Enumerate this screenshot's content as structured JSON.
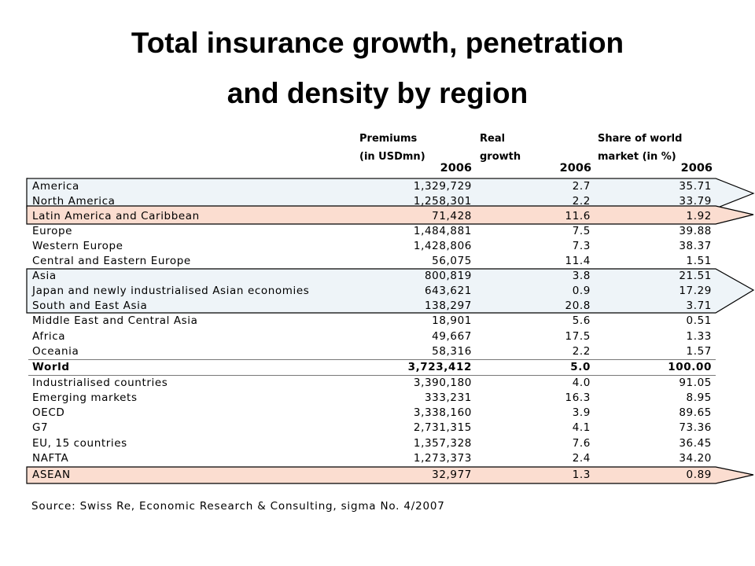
{
  "title": {
    "line1": "Total insurance growth, penetration",
    "line2": "and density by region"
  },
  "table": {
    "headers": {
      "premiums": [
        "Premiums",
        "(in USDmn)"
      ],
      "growth": [
        "Real",
        "growth"
      ],
      "share": [
        "Share of world",
        "market (in %)"
      ]
    },
    "year": "2006",
    "rows": [
      {
        "label": "America",
        "premiums": "1,329,729",
        "growth": "2.7",
        "share": "35.71",
        "highlight": "blue"
      },
      {
        "label": "North America",
        "premiums": "1,258,301",
        "growth": "2.2",
        "share": "33.79",
        "highlight": "blue"
      },
      {
        "label": "Latin America and Caribbean",
        "premiums": "71,428",
        "growth": "11.6",
        "share": "1.92",
        "highlight": "orange"
      },
      {
        "label": "Europe",
        "premiums": "1,484,881",
        "growth": "7.5",
        "share": "39.88"
      },
      {
        "label": "Western Europe",
        "premiums": "1,428,806",
        "growth": "7.3",
        "share": "38.37"
      },
      {
        "label": "Central and Eastern Europe",
        "premiums": "56,075",
        "growth": "11.4",
        "share": "1.51"
      },
      {
        "label": "Asia",
        "premiums": "800,819",
        "growth": "3.8",
        "share": "21.51",
        "highlight": "blue"
      },
      {
        "label": "Japan and newly industrialised Asian economies",
        "premiums": "643,621",
        "growth": "0.9",
        "share": "17.29",
        "highlight": "blue"
      },
      {
        "label": "South and East Asia",
        "premiums": "138,297",
        "growth": "20.8",
        "share": "3.71",
        "highlight": "blue"
      },
      {
        "label": "Middle East and Central Asia",
        "premiums": "18,901",
        "growth": "5.6",
        "share": "0.51"
      },
      {
        "label": "Africa",
        "premiums": "49,667",
        "growth": "17.5",
        "share": "1.33"
      },
      {
        "label": "Oceania",
        "premiums": "58,316",
        "growth": "2.2",
        "share": "1.57"
      },
      {
        "label": "World",
        "premiums": "3,723,412",
        "growth": "5.0",
        "share": "100.00",
        "bold": true
      },
      {
        "label": "Industrialised countries",
        "premiums": "3,390,180",
        "growth": "4.0",
        "share": "91.05"
      },
      {
        "label": "Emerging markets",
        "premiums": "333,231",
        "growth": "16.3",
        "share": "8.95"
      },
      {
        "label": "OECD",
        "premiums": "3,338,160",
        "growth": "3.9",
        "share": "89.65"
      },
      {
        "label": "G7",
        "premiums": "2,731,315",
        "growth": "4.1",
        "share": "73.36"
      },
      {
        "label": "EU, 15 countries",
        "premiums": "1,357,328",
        "growth": "7.6",
        "share": "36.45"
      },
      {
        "label": "NAFTA",
        "premiums": "1,273,373",
        "growth": "2.4",
        "share": "34.20"
      },
      {
        "label": "ASEAN",
        "premiums": "32,977",
        "growth": "1.3",
        "share": "0.89",
        "highlight": "orange"
      }
    ]
  },
  "source": "Source: Swiss Re, Economic Research & Consulting, sigma No. 4/2007",
  "colors": {
    "blue_highlight": "#eef4f8",
    "orange_highlight": "#fbddd0",
    "outline": "#000000"
  }
}
